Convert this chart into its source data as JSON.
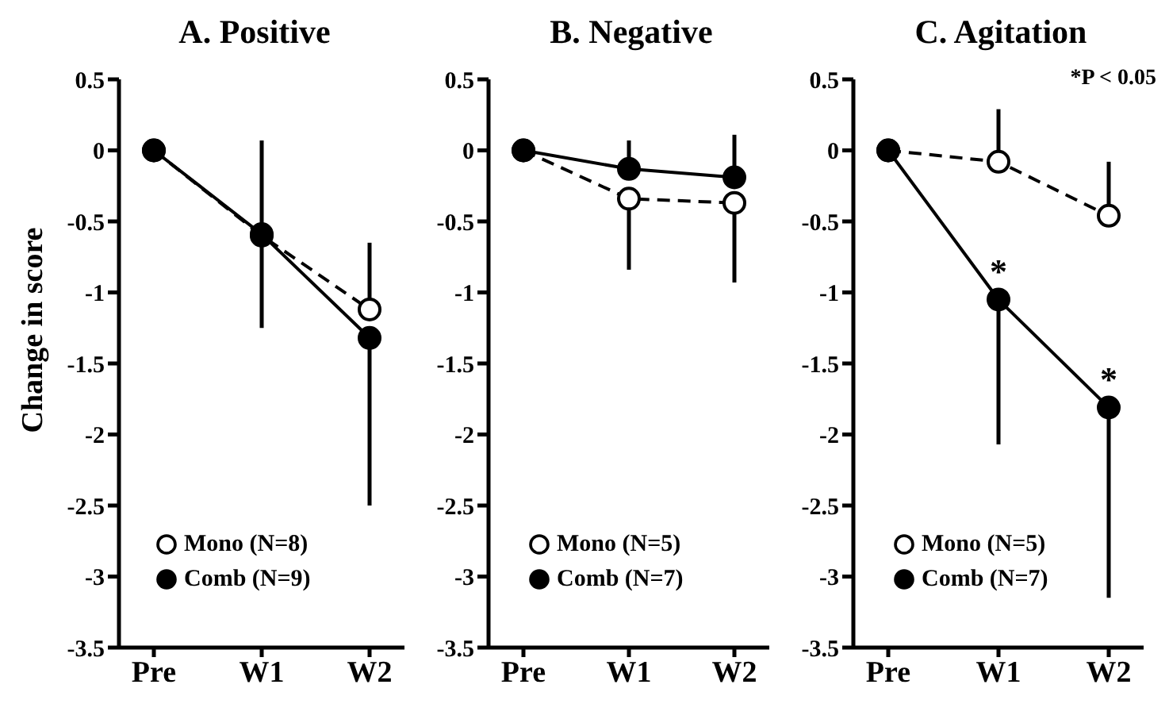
{
  "chart_data": [
    {
      "type": "line",
      "title": "A. Positive",
      "ylabel": "Change in score",
      "categories": [
        "Pre",
        "W1",
        "W2"
      ],
      "ylim": [
        -3.5,
        0.5
      ],
      "yticks": [
        0.5,
        0,
        -0.5,
        -1,
        -1.5,
        -2,
        -2.5,
        -3,
        -3.5
      ],
      "grid": false,
      "legend": "bottom left",
      "marker": "circle",
      "series": [
        {
          "name": "Mono (N=8)",
          "color": "#000000",
          "line_style": "dashed",
          "values": [
            0,
            -0.6,
            -1.12
          ],
          "errors": [
            null,
            null,
            [
              -1.12,
              -0.65
            ]
          ]
        },
        {
          "name": "Comb (N=9)",
          "color": "#000000",
          "line_style": "solid",
          "values": [
            0,
            -0.59,
            -1.32
          ],
          "errors": [
            null,
            0.66,
            [
              -2.5,
              -1.32
            ]
          ]
        }
      ]
    },
    {
      "type": "line",
      "title": "B. Negative",
      "categories": [
        "Pre",
        "W1",
        "W2"
      ],
      "ylim": [
        -3.5,
        0.5
      ],
      "yticks": [
        0.5,
        0,
        -0.5,
        -1,
        -1.5,
        -2,
        -2.5,
        -3,
        -3.5
      ],
      "grid": false,
      "legend": "bottom left",
      "marker": "circle",
      "series": [
        {
          "name": "Mono (N=5)",
          "color": "#000000",
          "line_style": "dashed",
          "values": [
            0,
            -0.34,
            -0.37
          ],
          "errors": [
            null,
            [
              -0.84,
              -0.34
            ],
            [
              -0.93,
              -0.37
            ]
          ]
        },
        {
          "name": "Comb (N=7)",
          "color": "#000000",
          "line_style": "solid",
          "values": [
            0,
            -0.13,
            -0.19
          ],
          "errors": [
            null,
            [
              -0.13,
              0.07
            ],
            [
              -0.19,
              0.11
            ]
          ]
        }
      ]
    },
    {
      "type": "line",
      "title": "C. Agitation",
      "categories": [
        "Pre",
        "W1",
        "W2"
      ],
      "ylim": [
        -3.5,
        0.5
      ],
      "yticks": [
        0.5,
        0,
        -0.5,
        -1,
        -1.5,
        -2,
        -2.5,
        -3,
        -3.5
      ],
      "grid": false,
      "legend": "bottom left",
      "marker": "circle",
      "annotations": [
        "*P < 0.05",
        {
          "text": "*",
          "x": "W1",
          "y": -1.05
        },
        {
          "text": "*",
          "x": "W2",
          "y": -1.81
        }
      ],
      "series": [
        {
          "name": "Mono (N=5)",
          "color": "#000000",
          "line_style": "dashed",
          "values": [
            0,
            -0.08,
            -0.46
          ],
          "errors": [
            null,
            [
              -0.08,
              0.29
            ],
            [
              -0.46,
              -0.08
            ]
          ]
        },
        {
          "name": "Comb (N=7)",
          "color": "#000000",
          "line_style": "solid",
          "values": [
            0,
            -1.05,
            -1.81
          ],
          "errors": [
            null,
            [
              -2.07,
              -1.05
            ],
            [
              -3.15,
              -1.81
            ]
          ]
        }
      ]
    }
  ]
}
